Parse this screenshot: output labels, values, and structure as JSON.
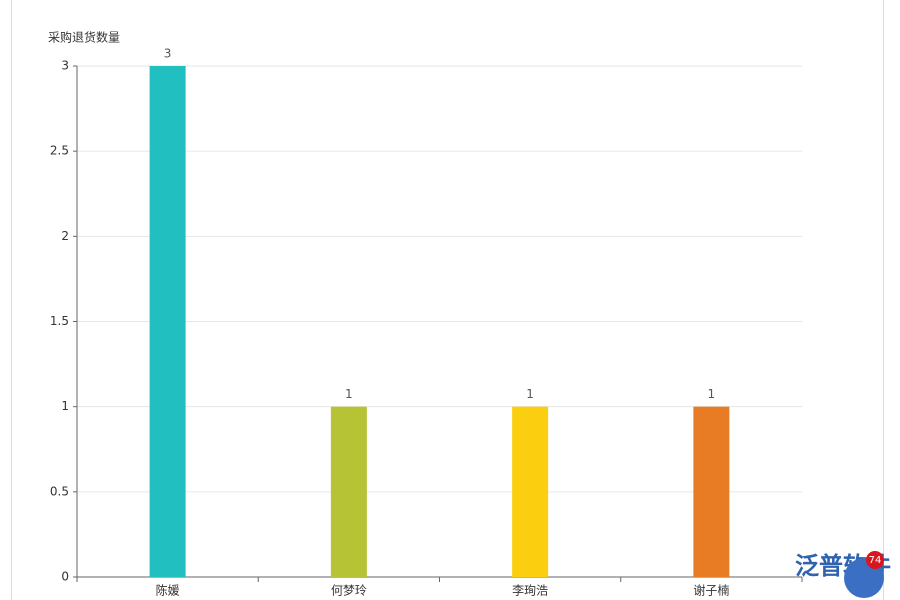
{
  "chart_data": {
    "type": "bar",
    "y_axis_label": "采购退货数量",
    "categories": [
      "陈媛",
      "何梦玲",
      "李珣浩",
      "谢子楠"
    ],
    "values": [
      3,
      1,
      1,
      1
    ],
    "colors": [
      "#22bfc0",
      "#b5c334",
      "#fcce10",
      "#e87c25"
    ],
    "ylim": [
      0,
      3
    ],
    "yticks": [
      0,
      0.5,
      1,
      1.5,
      2,
      2.5,
      3
    ],
    "grid": true
  },
  "watermark": {
    "brand": "泛普软件",
    "badge": "74"
  }
}
